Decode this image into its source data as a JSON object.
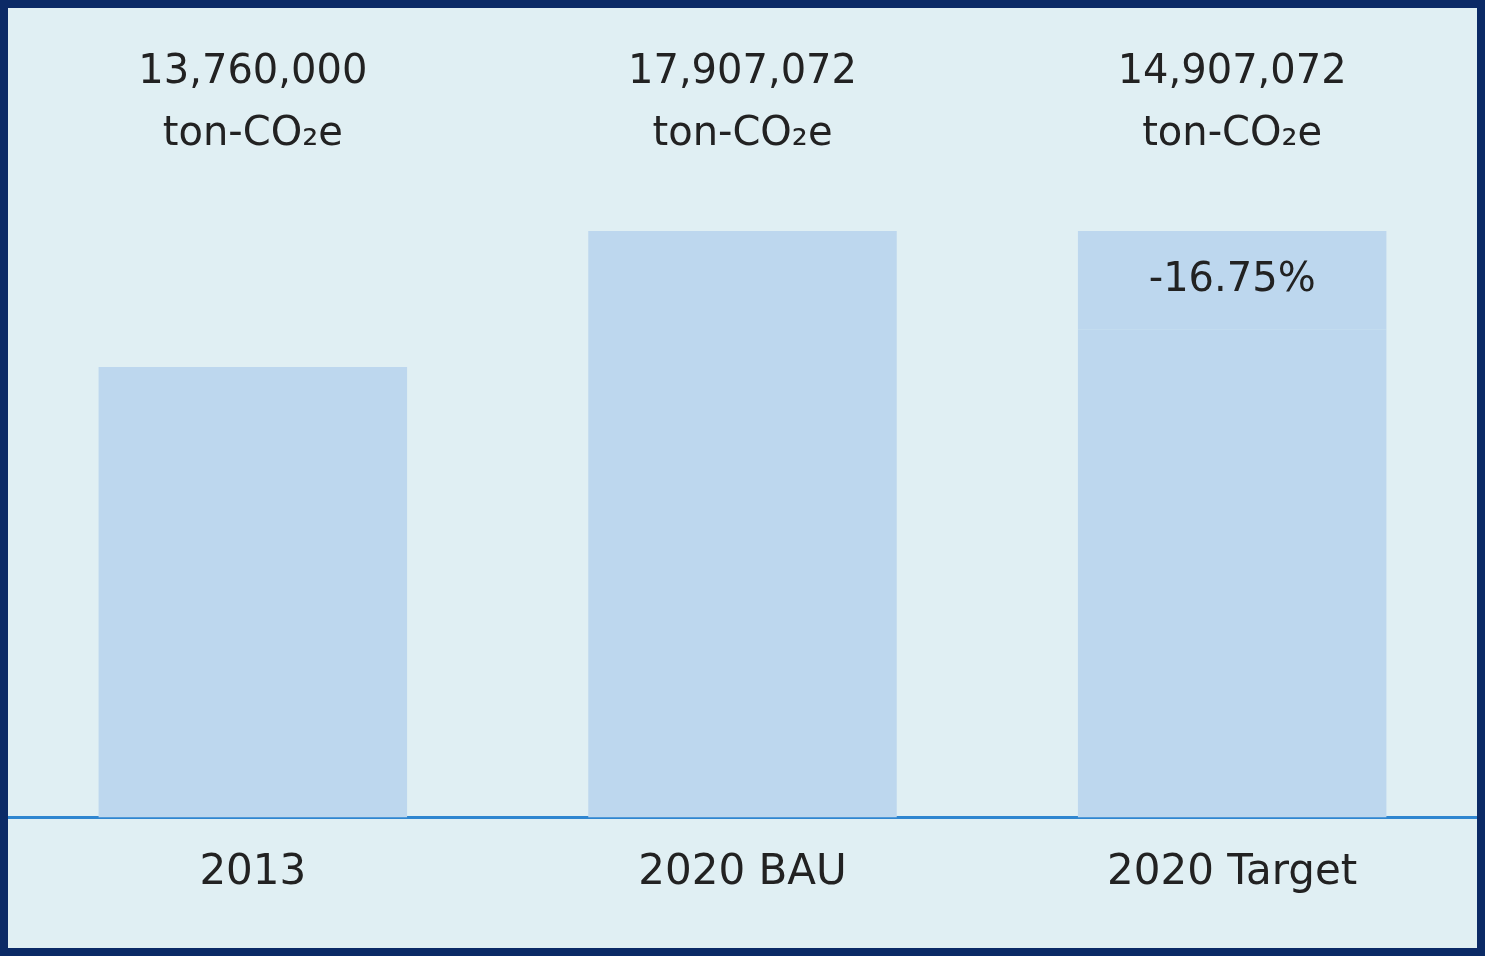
{
  "chart_data": {
    "type": "bar",
    "categories": [
      "2013",
      "2020 BAU",
      "2020 Target"
    ],
    "stacked": true,
    "tick_labels": "x",
    "legend": false,
    "grid": false,
    "series": [
      {
        "color": "#bdd7ee",
        "values": [
          13760000,
          17907072,
          14907072
        ],
        "value_labels": [
          "13,760,000 ton-CO₂e",
          "17,907,072 ton-CO₂e",
          "14,907,072 ton-CO₂e"
        ]
      },
      {
        "color": "#bdd7ee",
        "values": [
          null,
          null,
          3000000
        ]
      }
    ],
    "annotations": [
      "-16.75%"
    ]
  }
}
